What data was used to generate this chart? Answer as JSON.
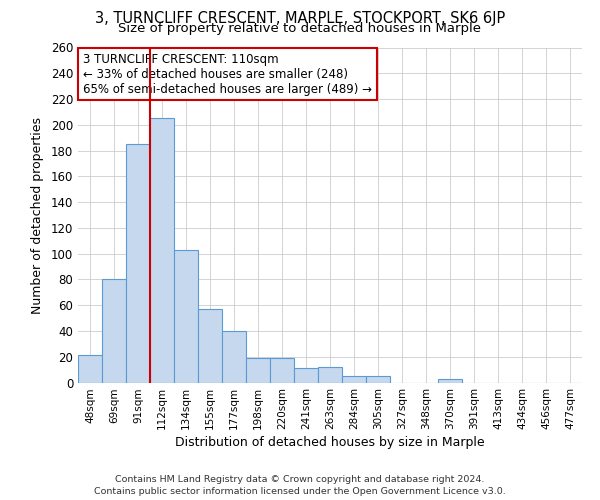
{
  "title": "3, TURNCLIFF CRESCENT, MARPLE, STOCKPORT, SK6 6JP",
  "subtitle": "Size of property relative to detached houses in Marple",
  "xlabel": "Distribution of detached houses by size in Marple",
  "ylabel": "Number of detached properties",
  "bin_labels": [
    "48sqm",
    "69sqm",
    "91sqm",
    "112sqm",
    "134sqm",
    "155sqm",
    "177sqm",
    "198sqm",
    "220sqm",
    "241sqm",
    "263sqm",
    "284sqm",
    "305sqm",
    "327sqm",
    "348sqm",
    "370sqm",
    "391sqm",
    "413sqm",
    "434sqm",
    "456sqm",
    "477sqm"
  ],
  "bar_heights": [
    21,
    80,
    185,
    205,
    103,
    57,
    40,
    19,
    19,
    11,
    12,
    5,
    5,
    0,
    0,
    3,
    0,
    0,
    0,
    0,
    0
  ],
  "bar_color": "#c5d8ed",
  "bar_edge_color": "#5b9bd5",
  "vline_x_index": 2.5,
  "vline_color": "#cc0000",
  "ylim": [
    0,
    260
  ],
  "yticks": [
    0,
    20,
    40,
    60,
    80,
    100,
    120,
    140,
    160,
    180,
    200,
    220,
    240,
    260
  ],
  "annotation_title": "3 TURNCLIFF CRESCENT: 110sqm",
  "annotation_line1": "← 33% of detached houses are smaller (248)",
  "annotation_line2": "65% of semi-detached houses are larger (489) →",
  "annotation_box_color": "#ffffff",
  "annotation_box_edge": "#cc0000",
  "footer_line1": "Contains HM Land Registry data © Crown copyright and database right 2024.",
  "footer_line2": "Contains public sector information licensed under the Open Government Licence v3.0.",
  "background_color": "#ffffff",
  "grid_color": "#cccccc"
}
